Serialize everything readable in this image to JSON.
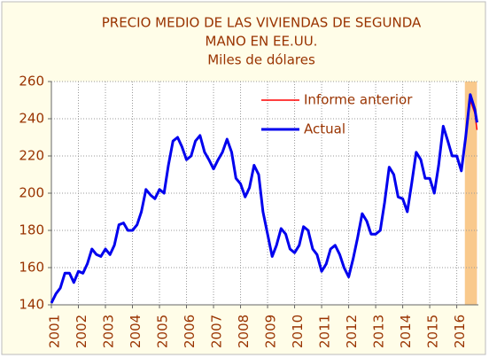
{
  "chart_data": {
    "type": "line",
    "title": [
      "PRECIO MEDIO DE LAS VIVIENDAS DE SEGUNDA",
      "MANO EN EE.UU.",
      "Miles de dólares"
    ],
    "x": [
      2001,
      2001.17,
      2001.33,
      2001.5,
      2001.67,
      2001.83,
      2002,
      2002.17,
      2002.33,
      2002.5,
      2002.67,
      2002.83,
      2003,
      2003.17,
      2003.33,
      2003.5,
      2003.67,
      2003.83,
      2004,
      2004.17,
      2004.33,
      2004.5,
      2004.67,
      2004.83,
      2005,
      2005.17,
      2005.33,
      2005.5,
      2005.67,
      2005.83,
      2006,
      2006.17,
      2006.33,
      2006.5,
      2006.67,
      2006.83,
      2007,
      2007.17,
      2007.33,
      2007.5,
      2007.67,
      2007.83,
      2008,
      2008.17,
      2008.33,
      2008.5,
      2008.67,
      2008.83,
      2009,
      2009.17,
      2009.33,
      2009.5,
      2009.67,
      2009.83,
      2010,
      2010.17,
      2010.33,
      2010.5,
      2010.67,
      2010.83,
      2011,
      2011.17,
      2011.33,
      2011.5,
      2011.67,
      2011.83,
      2012,
      2012.17,
      2012.33,
      2012.5,
      2012.67,
      2012.83,
      2013,
      2013.17,
      2013.33,
      2013.5,
      2013.67,
      2013.83,
      2014,
      2014.17,
      2014.33,
      2014.5,
      2014.67,
      2014.83,
      2015,
      2015.17,
      2015.33,
      2015.5,
      2015.67,
      2015.83,
      2016,
      2016.17,
      2016.33,
      2016.5,
      2016.67,
      2016.75
    ],
    "series": [
      {
        "name": "Informe anterior",
        "color": "#ff0000",
        "values": [
          null,
          null,
          null,
          null,
          null,
          null,
          null,
          null,
          null,
          null,
          null,
          null,
          null,
          null,
          null,
          null,
          null,
          null,
          null,
          null,
          null,
          null,
          null,
          null,
          null,
          null,
          null,
          null,
          null,
          null,
          null,
          null,
          null,
          null,
          null,
          null,
          null,
          null,
          null,
          null,
          null,
          null,
          null,
          null,
          null,
          null,
          null,
          null,
          null,
          null,
          null,
          null,
          null,
          null,
          null,
          null,
          null,
          null,
          null,
          null,
          null,
          null,
          null,
          null,
          null,
          null,
          null,
          null,
          null,
          null,
          null,
          null,
          null,
          null,
          null,
          null,
          null,
          null,
          null,
          null,
          null,
          null,
          null,
          null,
          null,
          null,
          null,
          null,
          null,
          null,
          null,
          null,
          230,
          250,
          243,
          234
        ]
      },
      {
        "name": "Actual",
        "color": "#0000ee",
        "values": [
          141,
          146,
          149,
          157,
          157,
          152,
          158,
          157,
          162,
          170,
          167,
          166,
          170,
          167,
          172,
          183,
          184,
          180,
          180,
          183,
          190,
          202,
          199,
          197,
          202,
          200,
          215,
          228,
          230,
          225,
          218,
          220,
          228,
          231,
          222,
          218,
          213,
          218,
          222,
          229,
          222,
          208,
          205,
          198,
          203,
          215,
          210,
          190,
          178,
          166,
          172,
          181,
          178,
          170,
          168,
          172,
          182,
          180,
          170,
          167,
          158,
          162,
          170,
          172,
          167,
          160,
          155,
          165,
          176,
          189,
          185,
          178,
          178,
          180,
          195,
          214,
          210,
          198,
          197,
          190,
          205,
          222,
          218,
          208,
          208,
          200,
          215,
          236,
          228,
          220,
          220,
          212,
          230,
          253,
          245,
          238
        ]
      }
    ],
    "xlim": [
      2001,
      2016.8
    ],
    "xticks": [
      2001,
      2002,
      2003,
      2004,
      2005,
      2006,
      2007,
      2008,
      2009,
      2010,
      2011,
      2012,
      2013,
      2014,
      2015,
      2016
    ],
    "ylim": [
      140,
      260
    ],
    "yticks": [
      140,
      160,
      180,
      200,
      220,
      240,
      260
    ],
    "highlight": [
      2016.3,
      2016.75
    ],
    "grid": true
  }
}
